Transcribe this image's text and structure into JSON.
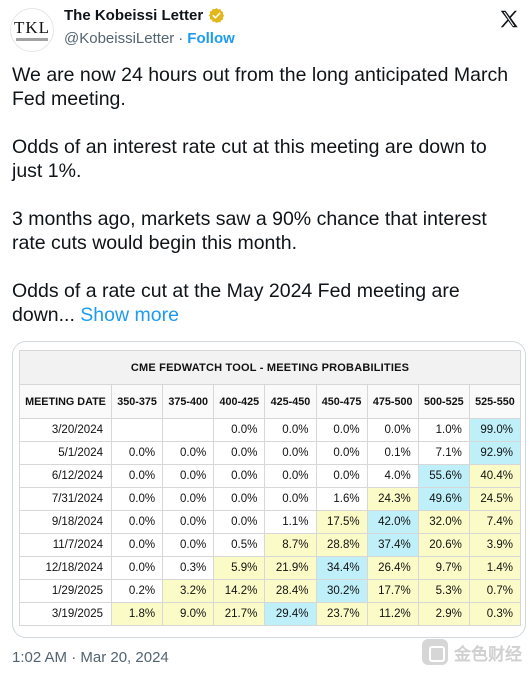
{
  "author": {
    "avatar_text": "TKL",
    "name": "The Kobeissi Letter",
    "handle": "@KobeissiLetter",
    "separator": "·",
    "follow_label": "Follow"
  },
  "tweet": {
    "paragraphs": [
      "We are now 24 hours out from the long anticipated March Fed meeting.",
      "Odds of an interest rate cut at this meeting are down to just 1%.",
      "3 months ago, markets saw a 90% chance that interest rate cuts would begin this month."
    ],
    "last_paragraph": "Odds of a rate cut at the May 2024 Fed meeting are down...",
    "show_more_label": "Show more"
  },
  "table": {
    "title": "CME FEDWATCH TOOL - MEETING PROBABILITIES",
    "headers": [
      "MEETING DATE",
      "350-375",
      "375-400",
      "400-425",
      "425-450",
      "450-475",
      "475-500",
      "500-525",
      "525-550"
    ],
    "rows": [
      {
        "date": "3/20/2024",
        "values": [
          "",
          "",
          "0.0%",
          "0.0%",
          "0.0%",
          "0.0%",
          "1.0%",
          "99.0%"
        ],
        "hl": [
          "",
          "",
          "",
          "",
          "",
          "",
          "",
          "b"
        ]
      },
      {
        "date": "5/1/2024",
        "values": [
          "0.0%",
          "0.0%",
          "0.0%",
          "0.0%",
          "0.0%",
          "0.1%",
          "7.1%",
          "92.9%"
        ],
        "hl": [
          "",
          "",
          "",
          "",
          "",
          "",
          "",
          "b"
        ]
      },
      {
        "date": "6/12/2024",
        "values": [
          "0.0%",
          "0.0%",
          "0.0%",
          "0.0%",
          "0.0%",
          "4.0%",
          "55.6%",
          "40.4%"
        ],
        "hl": [
          "",
          "",
          "",
          "",
          "",
          "",
          "b",
          "y"
        ]
      },
      {
        "date": "7/31/2024",
        "values": [
          "0.0%",
          "0.0%",
          "0.0%",
          "0.0%",
          "1.6%",
          "24.3%",
          "49.6%",
          "24.5%"
        ],
        "hl": [
          "",
          "",
          "",
          "",
          "",
          "y",
          "b",
          "y"
        ]
      },
      {
        "date": "9/18/2024",
        "values": [
          "0.0%",
          "0.0%",
          "0.0%",
          "1.1%",
          "17.5%",
          "42.0%",
          "32.0%",
          "7.4%"
        ],
        "hl": [
          "",
          "",
          "",
          "",
          "y",
          "b",
          "y",
          "y"
        ]
      },
      {
        "date": "11/7/2024",
        "values": [
          "0.0%",
          "0.0%",
          "0.5%",
          "8.7%",
          "28.8%",
          "37.4%",
          "20.6%",
          "3.9%"
        ],
        "hl": [
          "",
          "",
          "",
          "y",
          "y",
          "b",
          "y",
          "y"
        ]
      },
      {
        "date": "12/18/2024",
        "values": [
          "0.0%",
          "0.3%",
          "5.9%",
          "21.9%",
          "34.4%",
          "26.4%",
          "9.7%",
          "1.4%"
        ],
        "hl": [
          "",
          "",
          "y",
          "y",
          "b",
          "y",
          "y",
          "y"
        ]
      },
      {
        "date": "1/29/2025",
        "values": [
          "0.2%",
          "3.2%",
          "14.2%",
          "28.4%",
          "30.2%",
          "17.7%",
          "5.3%",
          "0.7%"
        ],
        "hl": [
          "",
          "y",
          "y",
          "y",
          "b",
          "y",
          "y",
          "y"
        ]
      },
      {
        "date": "3/19/2025",
        "values": [
          "1.8%",
          "9.0%",
          "21.7%",
          "29.4%",
          "23.7%",
          "11.2%",
          "2.9%",
          "0.3%"
        ],
        "hl": [
          "y",
          "y",
          "y",
          "b",
          "y",
          "y",
          "y",
          "y"
        ]
      }
    ]
  },
  "footer": {
    "timestamp": "1:02 AM · Mar 20, 2024"
  },
  "watermark": {
    "text": "金色财经"
  },
  "colors": {
    "link": "#1d9bf0",
    "highlight_blue": "#bfeff8",
    "highlight_yellow": "#fbfbc8",
    "verified": "#e2b719"
  },
  "icons": {
    "verified": "verified-badge-icon",
    "platform": "x-logo-icon"
  }
}
